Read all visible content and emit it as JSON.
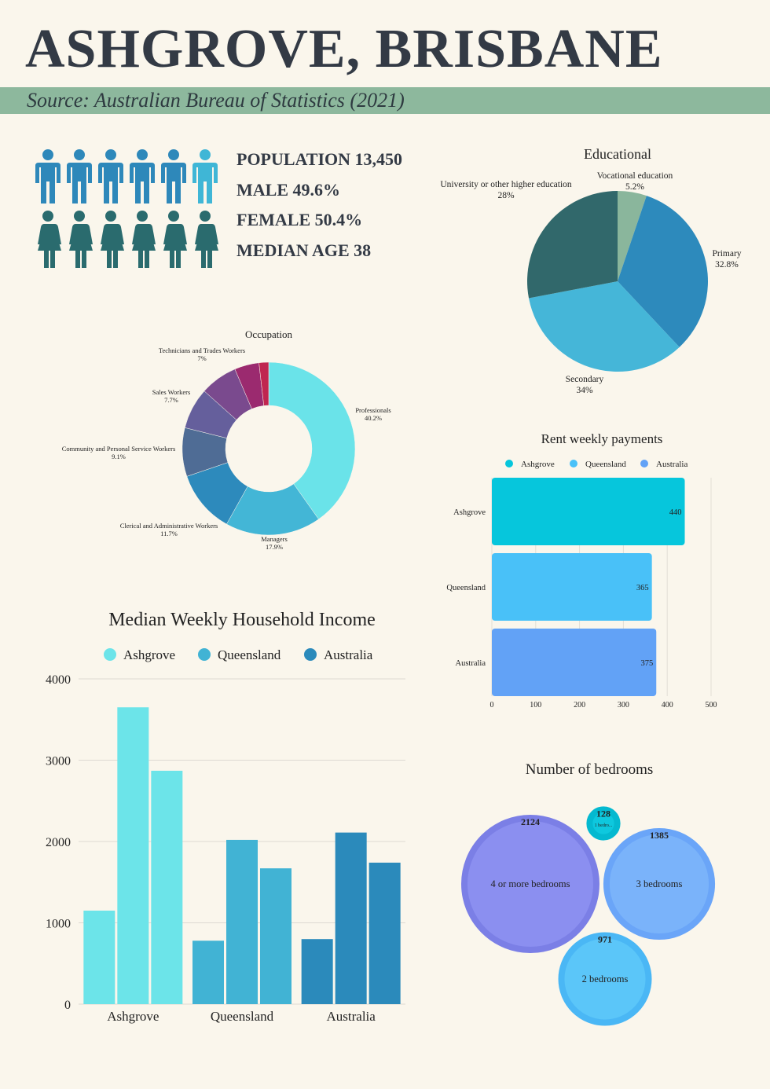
{
  "header": {
    "title": "ASHGROVE, BRISBANE",
    "source": "Source: Australian Bureau of Statistics (2021)"
  },
  "stats": {
    "population": "POPULATION 13,450",
    "male": "MALE 49.6%",
    "female": "FEMALE 50.4%",
    "median_age": "MEDIAN AGE 38"
  },
  "icons": {
    "male": "male-person-icon",
    "female": "female-person-icon"
  },
  "colors": {
    "male_icon": "#2e88ba",
    "male_icon_highlight": "#3fb6d6",
    "female_icon": "#2a6b6e",
    "teal_dark": "#31686b",
    "blue": "#2d8abc",
    "cyan": "#45b6d8",
    "sage": "#8ab69c",
    "rent_ashgrove": "#06c6dc",
    "rent_queensland": "#49c1f8",
    "rent_australia": "#62a2f6",
    "income_ashgrove": "#6ce4e9",
    "income_queensland": "#41b3d4",
    "income_australia": "#2b8abb"
  },
  "chart_data": [
    {
      "id": "educational",
      "type": "pie",
      "title": "Educational",
      "labels": [
        "Vocational education",
        "Primary",
        "Secondary",
        "University or other higher education"
      ],
      "pct_labels": [
        "5.2%",
        "32.8%",
        "34%",
        "28%"
      ],
      "values": [
        5.2,
        32.8,
        34,
        28
      ],
      "colors": [
        "#8ab69c",
        "#2d8abc",
        "#45b6d8",
        "#31686b"
      ]
    },
    {
      "id": "occupation",
      "type": "pie",
      "donut": true,
      "title": "Occupation",
      "labels": [
        "Professionals",
        "Managers",
        "Clerical and Administrative Workers",
        "Community and Personal Service Workers",
        "Sales Workers",
        "Technicians and Trades Workers",
        "",
        ""
      ],
      "pct_labels": [
        "40.2%",
        "17.9%",
        "11.7%",
        "9.1%",
        "7.7%",
        "7%",
        "",
        ""
      ],
      "values": [
        40.2,
        17.9,
        11.7,
        9.1,
        7.7,
        7,
        4.6,
        1.8
      ],
      "colors": [
        "#6ae3e9",
        "#43b6d6",
        "#2d8abc",
        "#4f6c95",
        "#655f9c",
        "#7a4a8e",
        "#9b2a6f",
        "#c02650"
      ]
    },
    {
      "id": "rent",
      "type": "bar",
      "orientation": "horizontal",
      "title": "Rent weekly payments",
      "categories": [
        "Ashgrove",
        "Queensland",
        "Australia"
      ],
      "values": [
        440,
        365,
        375
      ],
      "legend": [
        "Ashgrove",
        "Queensland",
        "Australia"
      ],
      "xlim": [
        0,
        500
      ],
      "xticks": [
        "0",
        "100",
        "200",
        "300",
        "400",
        "500"
      ],
      "colors": [
        "#06c6dc",
        "#49c1f8",
        "#62a2f6"
      ]
    },
    {
      "id": "income",
      "type": "bar",
      "title": "Median Weekly Household Income",
      "categories": [
        "Ashgrove",
        "Queensland",
        "Australia"
      ],
      "legend": [
        "Ashgrove",
        "Queensland",
        "Australia"
      ],
      "series": [
        {
          "values": [
            1150,
            3650,
            2870
          ]
        },
        {
          "values": [
            780,
            2020,
            1670
          ]
        },
        {
          "values": [
            800,
            2110,
            1740
          ]
        }
      ],
      "ylim": [
        0,
        4000
      ],
      "yticks": [
        "0",
        "1000",
        "2000",
        "3000",
        "4000"
      ],
      "colors": [
        "#6ce4e9",
        "#41b3d4",
        "#2b8abb"
      ]
    },
    {
      "id": "bedrooms",
      "type": "bubble",
      "title": "Number of bedrooms",
      "labels": [
        "4 or more bedrooms",
        "3 bedrooms",
        "2 bedrooms",
        "1 bedro..."
      ],
      "values": [
        2124,
        1385,
        971,
        128
      ],
      "value_labels": [
        "2124",
        "1385",
        "971",
        "128"
      ],
      "colors": [
        "#8b8ff0",
        "#7ab3fa",
        "#5bc6f9",
        "#0ec8de"
      ]
    }
  ]
}
